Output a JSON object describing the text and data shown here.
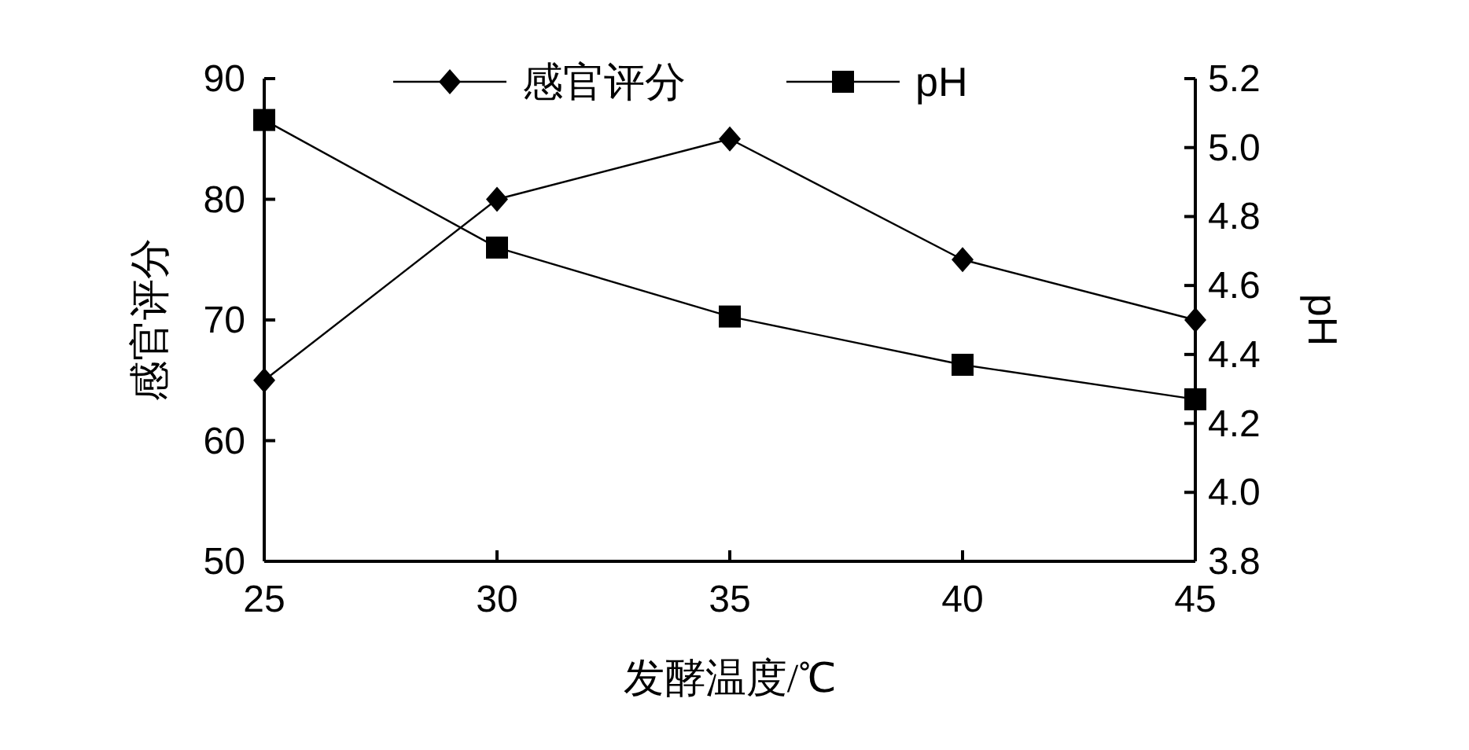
{
  "chart_data": {
    "type": "line",
    "xlabel": "发酵温度/℃",
    "ylabel": "感官评分",
    "y2label": "pH",
    "x": [
      25,
      30,
      35,
      40,
      45
    ],
    "xlim": [
      25,
      45
    ],
    "xticks": [
      25,
      30,
      35,
      40,
      45
    ],
    "ylim": [
      50,
      90
    ],
    "yticks": [
      50,
      60,
      70,
      80,
      90
    ],
    "y2lim": [
      3.8,
      5.2
    ],
    "y2ticks": [
      {
        "value": 3.8,
        "label": "3.8"
      },
      {
        "value": 4.0,
        "label": "4.0"
      },
      {
        "value": 4.2,
        "label": "4.2"
      },
      {
        "value": 4.4,
        "label": "4.4"
      },
      {
        "value": 4.6,
        "label": "4.6"
      },
      {
        "value": 4.8,
        "label": "4.8"
      },
      {
        "value": 5.0,
        "label": "5.0"
      },
      {
        "value": 5.2,
        "label": "5.2"
      }
    ],
    "series": [
      {
        "name": "感官评分",
        "color": "#000000",
        "marker": "diamond",
        "values": [
          65,
          80,
          85,
          75,
          70
        ]
      },
      {
        "name": "pH",
        "color": "#000000",
        "marker": "square",
        "axis": "y2",
        "values": [
          5.08,
          4.71,
          4.51,
          4.37,
          4.27
        ]
      }
    ],
    "legend": "top",
    "grid": false
  }
}
